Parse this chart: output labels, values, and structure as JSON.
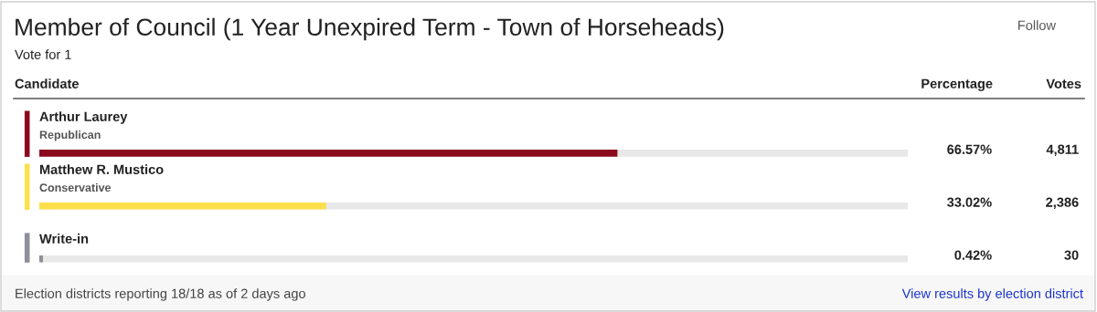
{
  "chart_data": {
    "type": "bar",
    "orientation": "horizontal",
    "title": "Member of Council (1 Year Unexpired Term - Town of Horseheads)",
    "subtitle": "Vote for 1",
    "categories": [
      "Arthur Laurey\nRepublican",
      "Matthew R. Mustico\nConservative",
      "Write-in"
    ],
    "values": [
      66.57,
      33.02,
      0.42
    ],
    "colors": [
      "#8c0a1e",
      "#fbe04c",
      "#8e8f99"
    ],
    "value_labels": [
      "66.57%",
      "33.02%",
      "0.42%"
    ],
    "xlim": [
      0,
      100
    ],
    "annotations": [
      "Follow",
      "Candidate",
      "Percentage",
      "Votes",
      "Election districts reporting 18/18 as of 2 days ago",
      "View results by election district",
      "4,811",
      "2,386",
      "30"
    ]
  }
}
